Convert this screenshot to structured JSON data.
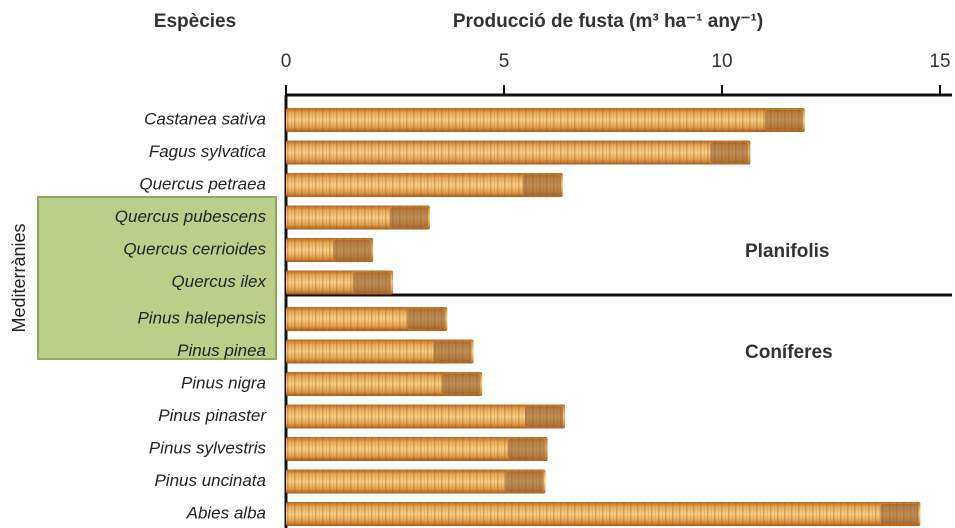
{
  "chart_data": {
    "type": "bar",
    "orientation": "horizontal",
    "title": "Producció de fusta (m³ ha⁻¹ any⁻¹)",
    "y_axis_label": "Espècies",
    "categories": [
      "Castanea sativa",
      "Fagus sylvatica",
      "Quercus petraea",
      "Quercus pubescens",
      "Quercus cerrioides",
      "Quercus ilex",
      "Pinus halepensis",
      "Pinus pinea",
      "Pinus nigra",
      "Pinus pinaster",
      "Pinus sylvestris",
      "Pinus uncinata",
      "Abies alba"
    ],
    "values": [
      11.9,
      10.65,
      6.35,
      3.3,
      2.0,
      2.45,
      3.7,
      4.3,
      4.5,
      6.4,
      6.0,
      5.95,
      14.55
    ],
    "xlim": [
      0,
      15
    ],
    "xticks": [
      0,
      5,
      10,
      15
    ],
    "group_labels": [
      "Planifolis",
      "Coníferes"
    ],
    "highlight_label": "Mediterrànies"
  }
}
